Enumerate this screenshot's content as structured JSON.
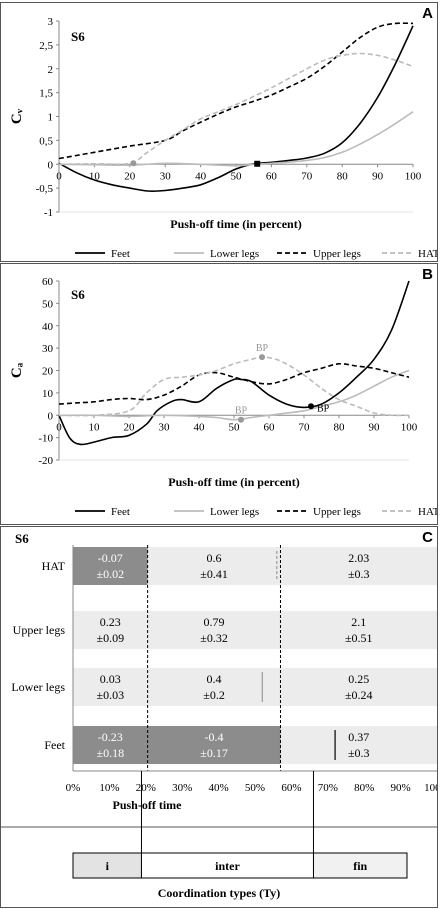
{
  "chart_data": [
    {
      "panel": "A",
      "type": "line",
      "subject": "S6",
      "ylabel": "Cᵥ",
      "xlabel": "Push-off time (in percent)",
      "xlim": [
        0,
        100
      ],
      "ylim": [
        -1,
        3
      ],
      "xticks": [
        0,
        10,
        20,
        30,
        40,
        50,
        60,
        70,
        80,
        90,
        100
      ],
      "yticks": [
        -1,
        -0.5,
        0,
        0.5,
        1,
        1.5,
        2,
        2.5,
        3
      ],
      "ytick_labels": [
        "-1",
        "-0,5",
        "0",
        "0,5",
        "1",
        "1,5",
        "2",
        "2,5",
        "3"
      ],
      "series": [
        {
          "name": "Feet",
          "color": "#000000",
          "dash": "solid",
          "x": [
            0,
            5,
            10,
            15,
            20,
            25,
            30,
            35,
            40,
            45,
            50,
            55,
            60,
            65,
            70,
            75,
            80,
            85,
            90,
            95,
            100
          ],
          "y": [
            0.02,
            -0.18,
            -0.33,
            -0.43,
            -0.5,
            -0.56,
            -0.55,
            -0.5,
            -0.43,
            -0.28,
            -0.1,
            0.01,
            0.04,
            0.08,
            0.13,
            0.23,
            0.45,
            0.85,
            1.4,
            2.1,
            2.9
          ]
        },
        {
          "name": "Lower legs",
          "color": "#bbbbbb",
          "dash": "solid",
          "x": [
            0,
            10,
            20,
            30,
            40,
            50,
            55,
            60,
            70,
            75,
            80,
            85,
            90,
            95,
            100
          ],
          "y": [
            0,
            -0.01,
            -0.02,
            0.02,
            0.0,
            -0.03,
            0.0,
            0.02,
            0.08,
            0.14,
            0.25,
            0.42,
            0.62,
            0.85,
            1.1
          ]
        },
        {
          "name": "Upper legs",
          "color": "#000000",
          "dash": "dashed",
          "x": [
            0,
            10,
            20,
            30,
            35,
            40,
            45,
            50,
            55,
            60,
            65,
            70,
            75,
            80,
            85,
            90,
            95,
            100
          ],
          "y": [
            0.12,
            0.25,
            0.38,
            0.5,
            0.7,
            0.88,
            1.05,
            1.2,
            1.32,
            1.45,
            1.62,
            1.8,
            2.05,
            2.35,
            2.65,
            2.87,
            2.95,
            2.95
          ]
        },
        {
          "name": "HAT",
          "color": "#bbbbbb",
          "dash": "dashed",
          "x": [
            0,
            10,
            20,
            25,
            30,
            35,
            40,
            45,
            50,
            55,
            60,
            65,
            70,
            75,
            80,
            85,
            90,
            95,
            100
          ],
          "y": [
            0,
            0.01,
            0.02,
            0.25,
            0.5,
            0.72,
            0.95,
            1.1,
            1.25,
            1.42,
            1.6,
            1.8,
            2.0,
            2.18,
            2.28,
            2.32,
            2.28,
            2.18,
            2.05
          ]
        }
      ],
      "markers": [
        {
          "x": 21,
          "y": 0.02,
          "color": "#999999",
          "shape": "circle"
        },
        {
          "x": 56,
          "y": 0.01,
          "color": "#000000",
          "shape": "square"
        }
      ]
    },
    {
      "panel": "B",
      "type": "line",
      "subject": "S6",
      "ylabel": "Cₐ",
      "xlabel": "Push-off time (in percent)",
      "xlim": [
        0,
        100
      ],
      "ylim": [
        -20,
        60
      ],
      "xticks": [
        0,
        10,
        20,
        30,
        40,
        50,
        60,
        70,
        80,
        90,
        100
      ],
      "yticks": [
        -20,
        -10,
        0,
        10,
        20,
        30,
        40,
        50,
        60
      ],
      "series": [
        {
          "name": "Feet",
          "color": "#000000",
          "dash": "solid",
          "x": [
            0,
            3,
            6,
            10,
            15,
            20,
            25,
            28,
            32,
            35,
            40,
            45,
            50,
            52,
            55,
            60,
            65,
            70,
            75,
            80,
            85,
            90,
            95,
            100
          ],
          "y": [
            0,
            -10,
            -13,
            -12,
            -10,
            -9,
            -4,
            2,
            6,
            7,
            6,
            12,
            16,
            16,
            15,
            9,
            5,
            3.5,
            5,
            10,
            17,
            25,
            38,
            60
          ]
        },
        {
          "name": "Lower legs",
          "color": "#bbbbbb",
          "dash": "solid",
          "x": [
            0,
            10,
            20,
            30,
            40,
            45,
            50,
            55,
            60,
            65,
            70,
            75,
            80,
            85,
            90,
            95,
            100
          ],
          "y": [
            0,
            0,
            -0.5,
            0,
            -0.5,
            -1,
            -2,
            -1,
            0,
            1,
            2,
            4,
            6,
            9,
            13,
            17,
            20
          ]
        },
        {
          "name": "Upper legs",
          "color": "#000000",
          "dash": "dashed",
          "x": [
            0,
            5,
            10,
            15,
            20,
            25,
            30,
            35,
            40,
            45,
            50,
            55,
            60,
            65,
            70,
            75,
            80,
            85,
            90,
            95,
            100
          ],
          "y": [
            5,
            5.5,
            6,
            7,
            7.5,
            7,
            9,
            13,
            18,
            19,
            17,
            15,
            14,
            16,
            19,
            21,
            23,
            22,
            21,
            19,
            17
          ]
        },
        {
          "name": "HAT",
          "color": "#bbbbbb",
          "dash": "dashed",
          "x": [
            0,
            10,
            20,
            25,
            30,
            35,
            40,
            45,
            50,
            55,
            58,
            62,
            66,
            70,
            75,
            80,
            85,
            90,
            95,
            100
          ],
          "y": [
            0,
            0,
            2,
            10,
            16,
            17,
            18,
            20,
            23,
            25,
            26,
            25,
            22,
            18,
            12,
            7,
            4,
            1,
            0,
            0
          ]
        }
      ],
      "annotations": [
        {
          "text": "BP",
          "x": 58,
          "y": 26,
          "color": "#999999",
          "label_position": "above",
          "shape": "circle"
        },
        {
          "text": "BP",
          "x": 52,
          "y": -2,
          "color": "#999999",
          "label_position": "above",
          "shape": "circle"
        },
        {
          "text": "BP",
          "x": 72,
          "y": 4,
          "color": "#000000",
          "label_position": "right",
          "shape": "circle"
        }
      ]
    },
    {
      "panel": "C",
      "type": "bar",
      "orientation": "horizontal-segments",
      "subject": "S6",
      "xlabel": "Push-off time",
      "xlim": [
        0,
        100
      ],
      "xticks": [
        0,
        10,
        20,
        30,
        40,
        50,
        60,
        70,
        80,
        90,
        100
      ],
      "xtick_labels": [
        "0%",
        "10%",
        "20%",
        "30%",
        "40%",
        "50%",
        "60%",
        "70%",
        "80%",
        "90%",
        "100%"
      ],
      "rows": [
        {
          "name": "HAT",
          "segments": [
            {
              "from": 0,
              "to": 20.5,
              "mean": "-0.07",
              "sd": "±0.02",
              "dark": true
            },
            {
              "from": 20.5,
              "to": 57,
              "mean": "0.6",
              "sd": "±0.41",
              "dark": false
            },
            {
              "from": 57,
              "to": 100,
              "mean": "2.03",
              "sd": "±0.3",
              "dark": false
            }
          ],
          "marker": {
            "x": 56,
            "style": "dashed"
          }
        },
        {
          "name": "Upper legs",
          "segments": [
            {
              "from": 0,
              "to": 20.5,
              "mean": "0.23",
              "sd": "±0.09",
              "dark": false
            },
            {
              "from": 20.5,
              "to": 57,
              "mean": "0.79",
              "sd": "±0.32",
              "dark": false
            },
            {
              "from": 57,
              "to": 100,
              "mean": "2.1",
              "sd": "±0.51",
              "dark": false
            }
          ]
        },
        {
          "name": "Lower legs",
          "segments": [
            {
              "from": 0,
              "to": 20.5,
              "mean": "0.03",
              "sd": "±0.03",
              "dark": false
            },
            {
              "from": 20.5,
              "to": 57,
              "mean": "0.4",
              "sd": "±0.2",
              "dark": false
            },
            {
              "from": 57,
              "to": 100,
              "mean": "0.25",
              "sd": "±0.24",
              "dark": false
            }
          ],
          "marker": {
            "x": 52,
            "style": "solid-gray"
          }
        },
        {
          "name": "Feet",
          "segments": [
            {
              "from": 0,
              "to": 20.5,
              "mean": "-0.23",
              "sd": "±0.18",
              "dark": true
            },
            {
              "from": 20.5,
              "to": 57,
              "mean": "-0.4",
              "sd": "±0.17",
              "dark": true
            },
            {
              "from": 57,
              "to": 100,
              "mean": "0.37",
              "sd": "±0.3",
              "dark": false
            }
          ],
          "marker": {
            "x": 72,
            "style": "solid-black"
          }
        }
      ],
      "boundaries": [
        20.5,
        57
      ]
    }
  ],
  "legend": [
    "Feet",
    "Lower legs",
    "Upper legs",
    "HAT"
  ],
  "panel_letters": [
    "A",
    "B",
    "C"
  ],
  "subject_label": "S6",
  "coordination": {
    "title": "Coordination types (Ty)",
    "segments": [
      {
        "label": "i",
        "from": 0,
        "to": 20.5
      },
      {
        "label": "inter",
        "from": 20.5,
        "to": 72
      },
      {
        "label": "fin",
        "from": 72,
        "to": 100
      }
    ]
  },
  "colors": {
    "dark_cell": "#8c8c8c",
    "light_cell": "#ececec",
    "gray_line": "#bbbbbb",
    "i_fill": "#e3e3e3",
    "fin_fill": "#f1f1f1"
  }
}
